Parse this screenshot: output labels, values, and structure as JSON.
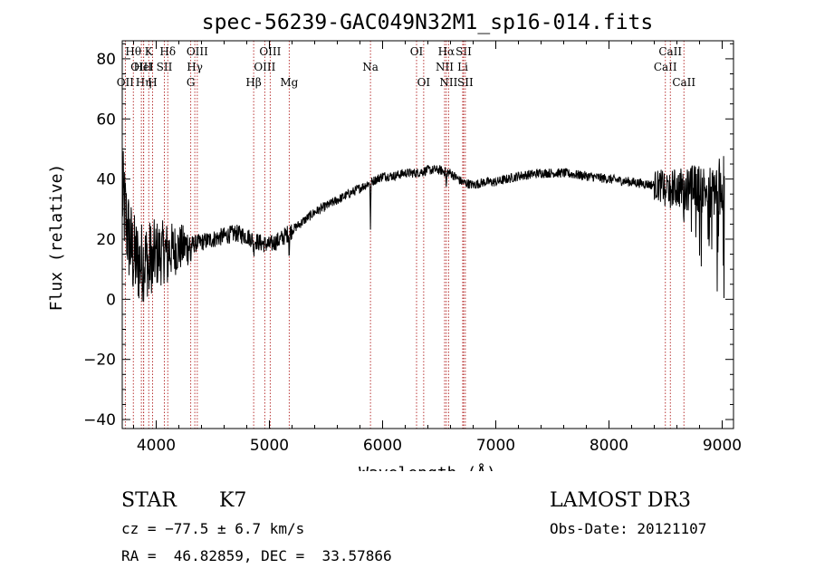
{
  "chart_data": {
    "type": "line",
    "title": "spec-56239-GAC049N32M1_sp16-014.fits",
    "xlabel": "Wavelength (Å)",
    "ylabel": "Flux (relative)",
    "xlim": [
      3700,
      9100
    ],
    "ylim": [
      -43,
      86
    ],
    "xticks": [
      4000,
      5000,
      6000,
      7000,
      8000,
      9000
    ],
    "yticks": [
      -40,
      -20,
      0,
      20,
      40,
      60,
      80
    ],
    "grid": false,
    "spectrum_knots": [
      [
        3700,
        35
      ],
      [
        3750,
        22
      ],
      [
        3800,
        14
      ],
      [
        3850,
        12
      ],
      [
        3900,
        13
      ],
      [
        3950,
        14
      ],
      [
        4000,
        15
      ],
      [
        4100,
        16
      ],
      [
        4200,
        17
      ],
      [
        4300,
        18
      ],
      [
        4400,
        19
      ],
      [
        4500,
        20
      ],
      [
        4600,
        21
      ],
      [
        4700,
        22
      ],
      [
        4800,
        21
      ],
      [
        4900,
        19
      ],
      [
        5000,
        18
      ],
      [
        5100,
        20
      ],
      [
        5200,
        23
      ],
      [
        5300,
        26
      ],
      [
        5400,
        29
      ],
      [
        5500,
        31
      ],
      [
        5600,
        33
      ],
      [
        5700,
        35
      ],
      [
        5800,
        37
      ],
      [
        5900,
        39
      ],
      [
        6000,
        41
      ],
      [
        6100,
        41
      ],
      [
        6200,
        42
      ],
      [
        6300,
        42
      ],
      [
        6400,
        43
      ],
      [
        6500,
        43
      ],
      [
        6600,
        42
      ],
      [
        6700,
        39
      ],
      [
        6800,
        38
      ],
      [
        6900,
        39
      ],
      [
        7000,
        39
      ],
      [
        7200,
        41
      ],
      [
        7400,
        42
      ],
      [
        7600,
        42
      ],
      [
        7800,
        41
      ],
      [
        8000,
        40
      ],
      [
        8200,
        39
      ],
      [
        8400,
        38
      ],
      [
        8600,
        37
      ],
      [
        8800,
        37
      ],
      [
        8900,
        36
      ],
      [
        9000,
        38
      ],
      [
        9050,
        38
      ]
    ],
    "spectral_lines": [
      {
        "name": "OII",
        "x": 3727,
        "row": 2
      },
      {
        "name": "Hθ",
        "x": 3798,
        "row": 0
      },
      {
        "name": "OIII",
        "x": 3869,
        "row": 1
      },
      {
        "name": "Hη",
        "x": 3889,
        "row": 2
      },
      {
        "name": "HeI",
        "x": 3889,
        "row": 1
      },
      {
        "name": "K",
        "x": 3934,
        "row": 0
      },
      {
        "name": "H",
        "x": 3968,
        "row": 2
      },
      {
        "name": "SII",
        "x": 4072,
        "row": 1
      },
      {
        "name": "Hδ",
        "x": 4102,
        "row": 0
      },
      {
        "name": "G",
        "x": 4305,
        "row": 2
      },
      {
        "name": "Hγ",
        "x": 4341,
        "row": 1
      },
      {
        "name": "OIII",
        "x": 4363,
        "row": 0
      },
      {
        "name": "Hβ",
        "x": 4861,
        "row": 2
      },
      {
        "name": "OIII",
        "x": 4959,
        "row": 1
      },
      {
        "name": "OIII",
        "x": 5007,
        "row": 0
      },
      {
        "name": "Mg",
        "x": 5175,
        "row": 2
      },
      {
        "name": "Na",
        "x": 5893,
        "row": 1
      },
      {
        "name": "OI",
        "x": 6300,
        "row": 0
      },
      {
        "name": "OI",
        "x": 6363,
        "row": 2
      },
      {
        "name": "NII",
        "x": 6548,
        "row": 1
      },
      {
        "name": "Hα",
        "x": 6563,
        "row": 0
      },
      {
        "name": "NII",
        "x": 6583,
        "row": 2
      },
      {
        "name": "Li",
        "x": 6708,
        "row": 1
      },
      {
        "name": "SII",
        "x": 6716,
        "row": 0
      },
      {
        "name": "SII",
        "x": 6731,
        "row": 2
      },
      {
        "name": "CaII",
        "x": 8498,
        "row": 1
      },
      {
        "name": "CaII",
        "x": 8542,
        "row": 0
      },
      {
        "name": "CaII",
        "x": 8662,
        "row": 2
      }
    ]
  },
  "info": {
    "class": "STAR",
    "subclass": "K7",
    "cz": "cz = −77.5 ± 6.7 km/s",
    "coords": "RA =  46.82859, DEC =  33.57866",
    "survey": "LAMOST DR3",
    "obs_date": "Obs-Date: 20121107"
  }
}
